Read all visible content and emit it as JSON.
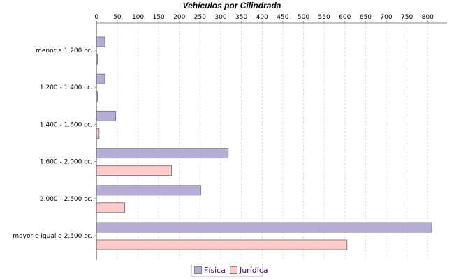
{
  "chart_data": {
    "type": "bar",
    "orientation": "horizontal",
    "title": "Vehículos por Cilindrada",
    "categories": [
      "menor a 1.200 cc.",
      "1.200 - 1.400 cc.",
      "1.400 - 1.600 cc.",
      "1.600 - 2.000 cc.",
      "2.000 - 2.500 cc.",
      "mayor o igual a 2.500 cc."
    ],
    "series": [
      {
        "name": "Física",
        "color": "#b6acd6",
        "values": [
          20,
          20,
          46,
          318,
          252,
          810
        ]
      },
      {
        "name": "Jurídica",
        "color": "#ffcaca",
        "values": [
          2,
          2,
          6,
          181,
          68,
          605
        ]
      }
    ],
    "xlim": [
      0,
      850
    ],
    "xticks": [
      0,
      50,
      100,
      150,
      200,
      250,
      300,
      350,
      400,
      450,
      500,
      550,
      600,
      650,
      700,
      750,
      800
    ],
    "x_axis_position": "top",
    "grid": true,
    "legend": "bottom"
  }
}
